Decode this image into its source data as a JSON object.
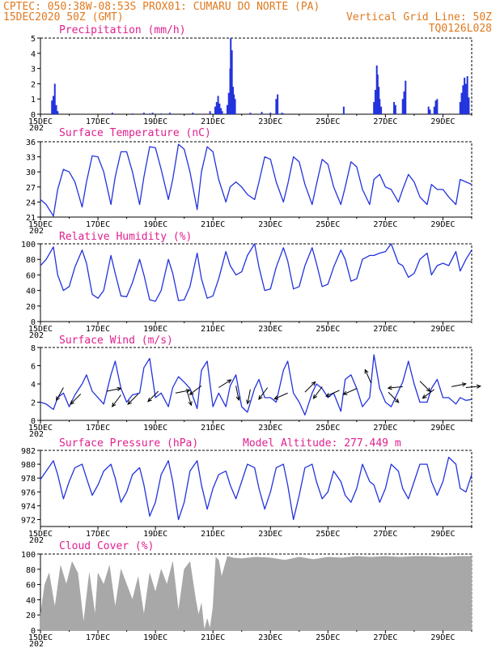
{
  "header": {
    "line1": "CPTEC:  050:38W-08:53S  PROX01: CUMARU DO NORTE (PA)",
    "line2_left": "15DEC2020 50Z (GMT)",
    "line2_right": "Vertical Grid Line: 50Z",
    "line3_right": "TQ0126L028"
  },
  "colors": {
    "header": "#e07a1f",
    "title": "#e0208f",
    "line": "#2233dd",
    "cloud": "#a8a8a8"
  },
  "x_axis": {
    "labels": [
      "15DEC",
      "17DEC",
      "19DEC",
      "21DEC",
      "23DEC",
      "25DEC",
      "27DEC",
      "29DEC"
    ],
    "year_fragment": "202"
  },
  "chart_data": [
    {
      "type": "bar",
      "id": "precip",
      "title": "Precipitation (mm/h)",
      "ylim": [
        0,
        5
      ],
      "yticks": [
        "0",
        "1",
        "2",
        "3",
        "4",
        "5"
      ],
      "x_days": [
        0.4,
        0.45,
        0.5,
        0.55,
        0.6,
        2.5,
        3.2,
        3.6,
        3.8,
        3.9,
        4.2,
        4.5,
        5.3,
        5.9,
        6.08,
        6.13,
        6.18,
        6.23,
        6.28,
        6.32,
        6.5,
        6.55,
        6.6,
        6.62,
        6.66,
        6.7,
        6.73,
        6.77,
        7.3,
        7.7,
        8.0,
        8.2,
        8.25,
        8.4,
        8.45,
        10.55,
        11.6,
        11.65,
        11.7,
        11.73,
        11.77,
        11.8,
        11.85,
        12.3,
        12.35,
        12.6,
        12.65,
        12.7,
        13.5,
        13.55,
        13.7,
        13.75,
        13.8,
        14.6,
        14.65,
        14.7,
        14.75,
        14.8,
        14.85,
        14.9
      ],
      "values": [
        0.9,
        1.2,
        2.0,
        0.6,
        0.2,
        0.1,
        0.05,
        0.1,
        0.05,
        0.1,
        0.05,
        0.1,
        0.1,
        0.2,
        0.5,
        0.8,
        1.2,
        0.7,
        0.4,
        0.2,
        0.6,
        1.4,
        3.0,
        5.0,
        4.2,
        1.8,
        1.3,
        1.0,
        0.1,
        0.15,
        0.1,
        1.0,
        1.3,
        0.1,
        0.05,
        0.5,
        0.8,
        1.6,
        3.2,
        2.6,
        1.8,
        1.0,
        0.5,
        0.8,
        0.6,
        1.0,
        1.5,
        2.2,
        0.5,
        0.3,
        0.5,
        0.9,
        1.0,
        0.8,
        1.4,
        1.9,
        2.4,
        2.0,
        2.5,
        1.1
      ]
    },
    {
      "type": "line",
      "id": "temp",
      "title": "Surface Temperature (nC)",
      "ylim": [
        21,
        36
      ],
      "yticks": [
        "21",
        "24",
        "27",
        "30",
        "33",
        "36"
      ],
      "x_days": [
        0,
        0.2,
        0.45,
        0.6,
        0.8,
        1.0,
        1.2,
        1.45,
        1.6,
        1.8,
        2.0,
        2.2,
        2.45,
        2.6,
        2.8,
        3.0,
        3.2,
        3.45,
        3.6,
        3.8,
        4.0,
        4.2,
        4.45,
        4.6,
        4.8,
        5.0,
        5.2,
        5.45,
        5.6,
        5.8,
        6.0,
        6.2,
        6.45,
        6.6,
        6.8,
        7.0,
        7.2,
        7.45,
        7.6,
        7.8,
        8.0,
        8.2,
        8.45,
        8.6,
        8.8,
        9.0,
        9.2,
        9.45,
        9.6,
        9.8,
        10.0,
        10.2,
        10.45,
        10.6,
        10.8,
        11.0,
        11.2,
        11.45,
        11.6,
        11.8,
        12.0,
        12.2,
        12.45,
        12.6,
        12.8,
        13.0,
        13.2,
        13.45,
        13.6,
        13.8,
        14.0,
        14.2,
        14.45,
        14.6,
        14.8,
        15.0
      ],
      "values": [
        24.5,
        23.5,
        21.2,
        26.5,
        30.5,
        30.0,
        28.0,
        23.0,
        28.0,
        33.2,
        33.0,
        30.0,
        23.5,
        29.0,
        34.0,
        34.0,
        30.0,
        23.5,
        29.0,
        35.0,
        34.8,
        30.5,
        24.5,
        28.5,
        35.5,
        34.5,
        30.0,
        22.5,
        30.0,
        35.0,
        34.0,
        28.5,
        24.0,
        27.0,
        28.0,
        27.0,
        25.5,
        24.5,
        28.0,
        33.0,
        32.5,
        28.0,
        24.0,
        27.5,
        33.0,
        32.0,
        27.5,
        23.5,
        27.5,
        32.5,
        31.5,
        27.0,
        23.5,
        27.0,
        32.0,
        31.0,
        26.5,
        23.5,
        28.5,
        29.5,
        27.0,
        26.5,
        24.0,
        26.5,
        29.5,
        28.0,
        25.0,
        23.5,
        27.5,
        26.5,
        26.5,
        25.0,
        23.5,
        28.5,
        28.0,
        27.5
      ]
    },
    {
      "type": "line",
      "id": "rh",
      "title": "Relative Humidity (%)",
      "ylim": [
        0,
        100
      ],
      "yticks": [
        "0",
        "20",
        "40",
        "60",
        "80",
        "100"
      ],
      "x_days": [
        0,
        0.2,
        0.45,
        0.6,
        0.8,
        1.0,
        1.2,
        1.45,
        1.6,
        1.8,
        2.0,
        2.2,
        2.45,
        2.6,
        2.8,
        3.0,
        3.2,
        3.45,
        3.6,
        3.8,
        4.0,
        4.2,
        4.45,
        4.6,
        4.8,
        5.0,
        5.2,
        5.45,
        5.6,
        5.8,
        6.0,
        6.2,
        6.45,
        6.6,
        6.8,
        7.0,
        7.2,
        7.45,
        7.6,
        7.8,
        8.0,
        8.2,
        8.45,
        8.6,
        8.8,
        9.0,
        9.2,
        9.45,
        9.6,
        9.8,
        10.0,
        10.2,
        10.45,
        10.6,
        10.8,
        11.0,
        11.2,
        11.45,
        11.6,
        11.8,
        12.0,
        12.2,
        12.45,
        12.6,
        12.8,
        13.0,
        13.2,
        13.45,
        13.6,
        13.8,
        14.0,
        14.2,
        14.45,
        14.6,
        14.8,
        15.0
      ],
      "values": [
        72,
        80,
        96,
        60,
        40,
        45,
        70,
        92,
        75,
        35,
        30,
        40,
        85,
        62,
        33,
        32,
        50,
        80,
        60,
        28,
        26,
        40,
        80,
        62,
        27,
        28,
        45,
        88,
        55,
        30,
        33,
        55,
        90,
        72,
        60,
        64,
        85,
        100,
        70,
        40,
        42,
        70,
        95,
        78,
        42,
        45,
        72,
        95,
        75,
        45,
        48,
        70,
        92,
        80,
        52,
        55,
        80,
        85,
        85,
        88,
        90,
        100,
        75,
        72,
        57,
        62,
        80,
        88,
        60,
        72,
        75,
        72,
        90,
        65,
        80,
        92
      ]
    },
    {
      "type": "line",
      "id": "wind",
      "title": "Surface Wind (m/s)",
      "ylim": [
        0,
        8
      ],
      "yticks": [
        "0",
        "2",
        "4",
        "6",
        "8"
      ],
      "x_days": [
        0,
        0.2,
        0.45,
        0.6,
        0.8,
        1.0,
        1.2,
        1.45,
        1.6,
        1.8,
        2.0,
        2.2,
        2.45,
        2.6,
        2.8,
        3.0,
        3.2,
        3.45,
        3.6,
        3.8,
        4.0,
        4.2,
        4.45,
        4.6,
        4.8,
        5.0,
        5.2,
        5.45,
        5.6,
        5.8,
        6.0,
        6.2,
        6.45,
        6.6,
        6.8,
        7.0,
        7.2,
        7.45,
        7.6,
        7.8,
        8.0,
        8.2,
        8.45,
        8.6,
        8.8,
        9.0,
        9.2,
        9.45,
        9.6,
        9.8,
        10.0,
        10.2,
        10.45,
        10.6,
        10.8,
        11.0,
        11.2,
        11.45,
        11.6,
        11.8,
        12.0,
        12.2,
        12.45,
        12.6,
        12.8,
        13.0,
        13.2,
        13.45,
        13.6,
        13.8,
        14.0,
        14.2,
        14.45,
        14.6,
        14.8,
        15.0
      ],
      "values": [
        2.0,
        1.8,
        1.2,
        2.5,
        3.0,
        1.5,
        2.8,
        4.0,
        5.0,
        3.2,
        2.5,
        1.8,
        5.0,
        6.5,
        3.5,
        2.0,
        2.8,
        3.0,
        5.8,
        6.8,
        2.5,
        3.0,
        1.5,
        3.6,
        4.8,
        4.2,
        3.5,
        1.3,
        5.5,
        6.5,
        1.5,
        3.0,
        1.5,
        3.8,
        5.0,
        1.5,
        0.9,
        3.5,
        4.5,
        2.5,
        2.5,
        2.0,
        5.5,
        6.5,
        3.0,
        2.0,
        0.6,
        3.0,
        4.0,
        3.5,
        2.5,
        3.0,
        1.0,
        4.5,
        5.0,
        3.5,
        1.5,
        2.5,
        7.2,
        3.5,
        2.0,
        1.5,
        3.2,
        4.2,
        6.5,
        4.0,
        2.0,
        2.0,
        3.5,
        4.5,
        2.5,
        2.5,
        1.8,
        2.5,
        2.2,
        2.3
      ],
      "arrows": {
        "x_days": [
          0.8,
          1.4,
          2.3,
          2.8,
          3.4,
          4.1,
          4.7,
          5.1,
          5.6,
          6.2,
          6.8,
          7.3,
          7.9,
          8.6,
          9.2,
          9.8,
          10.4,
          11.0,
          11.5,
          12.1,
          12.6,
          13.2,
          13.7,
          14.3,
          14.8
        ],
        "y_values": [
          3.6,
          2.9,
          3.2,
          2.8,
          2.9,
          3.2,
          3.0,
          3.2,
          3.8,
          3.6,
          3.8,
          3.4,
          3.6,
          3.0,
          3.1,
          3.7,
          3.3,
          3.5,
          4.1,
          3.1,
          3.7,
          4.3,
          3.4,
          3.7,
          3.6
        ],
        "u": [
          -0.5,
          -0.7,
          1.0,
          -0.6,
          -0.7,
          -0.7,
          1.0,
          0.3,
          -0.8,
          0.8,
          0.2,
          -0.2,
          -0.6,
          -0.9,
          0.7,
          -0.6,
          -0.9,
          -0.9,
          -0.4,
          0.7,
          -1.0,
          0.7,
          -0.8,
          1.0,
          1.0
        ],
        "v": [
          -0.9,
          -0.7,
          0.2,
          -0.8,
          -0.7,
          -0.7,
          0.2,
          -1.0,
          -0.6,
          0.5,
          -1.0,
          -1.0,
          -0.8,
          -0.4,
          0.7,
          -0.8,
          -0.4,
          -0.4,
          0.9,
          -0.7,
          -0.1,
          -0.7,
          -0.6,
          0.2,
          0.1
        ]
      }
    },
    {
      "type": "line",
      "id": "pres",
      "title": "Surface Pressure (hPa)",
      "annotation": "Model Altitude: 277.449 m",
      "ylim": [
        971,
        982
      ],
      "yticks": [
        "972",
        "974",
        "976",
        "978",
        "980",
        "982"
      ],
      "x_days": [
        0,
        0.2,
        0.45,
        0.6,
        0.8,
        1.0,
        1.2,
        1.45,
        1.6,
        1.8,
        2.0,
        2.2,
        2.45,
        2.6,
        2.8,
        3.0,
        3.2,
        3.45,
        3.6,
        3.8,
        4.0,
        4.2,
        4.45,
        4.6,
        4.8,
        5.0,
        5.2,
        5.45,
        5.6,
        5.8,
        6.0,
        6.2,
        6.45,
        6.6,
        6.8,
        7.0,
        7.2,
        7.45,
        7.6,
        7.8,
        8.0,
        8.2,
        8.45,
        8.6,
        8.8,
        9.0,
        9.2,
        9.45,
        9.6,
        9.8,
        10.0,
        10.2,
        10.45,
        10.6,
        10.8,
        11.0,
        11.2,
        11.45,
        11.6,
        11.8,
        12.0,
        12.2,
        12.45,
        12.6,
        12.8,
        13.0,
        13.2,
        13.45,
        13.6,
        13.8,
        14.0,
        14.2,
        14.45,
        14.6,
        14.8,
        15.0
      ],
      "values": [
        977.8,
        979.0,
        980.5,
        978.5,
        975.0,
        977.5,
        979.5,
        980.0,
        978.0,
        975.5,
        977.0,
        979.0,
        980.0,
        978.0,
        974.5,
        976.0,
        978.5,
        979.5,
        977.0,
        972.5,
        974.5,
        978.5,
        980.5,
        977.5,
        972.0,
        974.5,
        979.0,
        980.5,
        977.0,
        973.5,
        976.5,
        978.5,
        979.0,
        977.0,
        975.0,
        977.5,
        980.0,
        979.5,
        976.5,
        973.5,
        976.0,
        979.5,
        980.0,
        977.0,
        972.0,
        975.5,
        979.5,
        980.0,
        977.5,
        975.0,
        976.0,
        979.0,
        977.5,
        975.5,
        974.5,
        976.5,
        980.0,
        977.5,
        977.0,
        974.5,
        976.5,
        980.0,
        979.0,
        976.5,
        975.0,
        977.5,
        980.0,
        980.0,
        977.5,
        975.5,
        977.5,
        981.0,
        980.0,
        976.5,
        976.0,
        978.5
      ]
    },
    {
      "type": "area",
      "id": "cloud",
      "title": "Cloud Cover (%)",
      "ylim": [
        0,
        100
      ],
      "yticks": [
        "0",
        "20",
        "40",
        "60",
        "80",
        "100"
      ],
      "x_days": [
        0,
        0.15,
        0.3,
        0.5,
        0.7,
        0.9,
        1.1,
        1.3,
        1.5,
        1.7,
        1.9,
        2.0,
        2.2,
        2.4,
        2.6,
        2.8,
        3.0,
        3.2,
        3.4,
        3.6,
        3.8,
        4.0,
        4.2,
        4.4,
        4.6,
        4.8,
        5.0,
        5.2,
        5.4,
        5.5,
        5.6,
        5.7,
        5.8,
        5.9,
        6.0,
        6.1,
        6.2,
        6.3,
        6.5,
        6.7,
        7.0,
        7.5,
        8.0,
        8.5,
        9.0,
        9.5,
        10.0,
        10.5,
        11.0,
        11.5,
        12.0,
        12.5,
        13.0,
        13.5,
        14.0,
        14.5,
        15.0
      ],
      "values": [
        20,
        60,
        75,
        30,
        85,
        60,
        90,
        75,
        10,
        75,
        20,
        75,
        60,
        85,
        30,
        80,
        60,
        40,
        70,
        20,
        75,
        50,
        80,
        60,
        90,
        25,
        80,
        90,
        40,
        20,
        35,
        0,
        15,
        2,
        30,
        96,
        92,
        70,
        97,
        95,
        94,
        96,
        95,
        92,
        96,
        93,
        96,
        95,
        97,
        96,
        97,
        96,
        97,
        97,
        96,
        97,
        97
      ]
    }
  ]
}
